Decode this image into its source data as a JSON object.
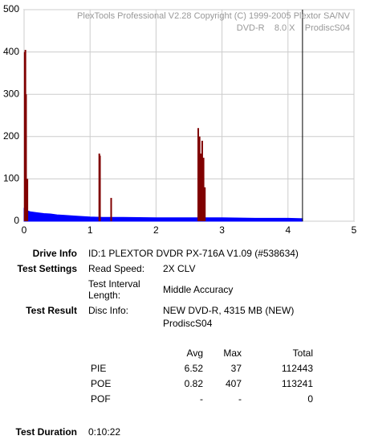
{
  "chart_data": {
    "type": "area_bars",
    "watermark": [
      "PlexTools Professional V2.28 Copyright (C) 1999-2005 Plextor SA/NV",
      "DVD-R    8.0 X    ProdiscS04"
    ],
    "series": [
      {
        "name": "PIE",
        "color": "#0000ff",
        "x": [
          0,
          0.03,
          0.06,
          0.1,
          0.2,
          0.3,
          0.4,
          0.5,
          0.6,
          0.8,
          1.0,
          1.2,
          1.5,
          2.0,
          2.5,
          3.0,
          3.5,
          4.0,
          4.22
        ],
        "values": [
          30,
          27,
          24,
          22,
          20,
          18,
          17,
          15,
          14,
          12,
          10,
          9,
          9,
          8,
          8,
          8,
          7,
          7,
          6
        ]
      },
      {
        "name": "POE",
        "color": "#800000",
        "x": [
          0.01,
          0.02,
          0.03,
          0.05,
          1.14,
          1.15,
          1.32,
          2.64,
          2.66,
          2.68,
          2.7,
          2.72,
          2.74
        ],
        "values": [
          400,
          405,
          300,
          100,
          160,
          155,
          55,
          220,
          200,
          160,
          190,
          150,
          80
        ]
      }
    ],
    "marker_x": 4.22,
    "xlim": [
      0,
      5
    ],
    "xticks": [
      0,
      1,
      2,
      3,
      4,
      5
    ],
    "ylim": [
      0,
      500
    ],
    "yticks": [
      0,
      100,
      200,
      300,
      400,
      500
    ],
    "grid": true
  },
  "report": {
    "drive_info": {
      "label": "Drive Info",
      "value": "ID:1 PLEXTOR DVDR PX-716A V1.09 (#538634)"
    },
    "test_settings": {
      "label": "Test Settings",
      "read_speed_label": "Read Speed:",
      "read_speed": "2X CLV",
      "interval_label": [
        "Test Interval",
        "Length:"
      ],
      "interval": "Middle Accuracy"
    },
    "test_result": {
      "label": "Test Result",
      "disc_info_label": "Disc Info:",
      "disc_info": [
        "NEW DVD-R, 4315 MB (NEW)",
        "ProdiscS04"
      ]
    },
    "table": {
      "header": [
        "Avg",
        "Max",
        "Total"
      ],
      "rows": [
        [
          "PIE",
          6.52,
          37,
          112443
        ],
        [
          "POE",
          0.82,
          407,
          113241
        ],
        [
          "POF",
          "-",
          "-",
          0
        ]
      ]
    },
    "test_duration": {
      "label": "Test Duration",
      "value": "0:10:22"
    }
  }
}
